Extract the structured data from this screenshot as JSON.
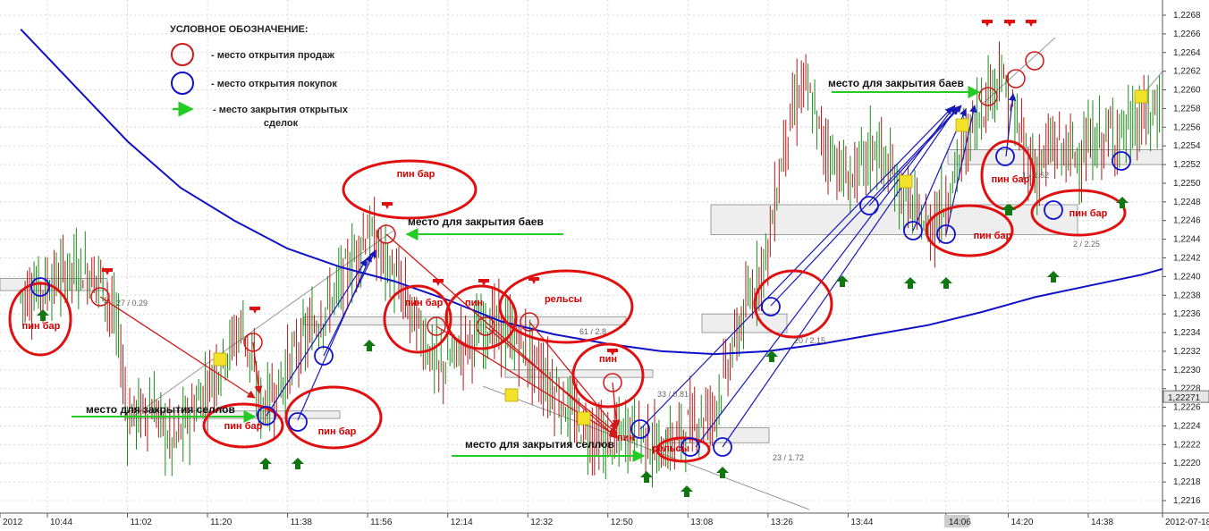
{
  "chart_data": {
    "type": "candlestick",
    "y_axis": {
      "ticks": [
        "1,2268",
        "1,2266",
        "1,2264",
        "1,2262",
        "1,2260",
        "1,2258",
        "1,2256",
        "1,2254",
        "1,2252",
        "1,2250",
        "1,2248",
        "1,2246",
        "1,2244",
        "1,2242",
        "1,2240",
        "1,2238",
        "1,2236",
        "1,2234",
        "1,2232",
        "1,2230",
        "1,2228",
        "1,2226",
        "1,2224",
        "1,2222",
        "1,2220",
        "1,2218",
        "1,2216"
      ],
      "range": [
        1.2214,
        1.227
      ],
      "current_price": "1,22271"
    },
    "x_axis": {
      "ticks": [
        "2012",
        "10:44",
        "11:02",
        "11:20",
        "11:38",
        "11:56",
        "12:14",
        "12:32",
        "12:50",
        "13:08",
        "13:26",
        "13:44",
        "14:06",
        "14:20",
        "14:38",
        "2012-07-18"
      ]
    },
    "legend": {
      "title": "УСЛОВНОЕ ОБОЗНАЧЕНИЕ:",
      "items": [
        {
          "symbol": "red-circle",
          "label": "- место открытия продаж"
        },
        {
          "symbol": "blue-circle",
          "label": "- место открытия покупок"
        },
        {
          "symbol": "green-arrow",
          "label": "- место закрытия открытых сделок"
        }
      ]
    },
    "moving_average": {
      "color": "#1010c8",
      "points": [
        [
          "10:38",
          1.22665
        ],
        [
          "10:50",
          1.22605
        ],
        [
          "11:02",
          1.22545
        ],
        [
          "11:14",
          1.22495
        ],
        [
          "11:26",
          1.2246
        ],
        [
          "11:38",
          1.2243
        ],
        [
          "11:50",
          1.2241
        ],
        [
          "12:02",
          1.22395
        ],
        [
          "12:14",
          1.22375
        ],
        [
          "12:26",
          1.22352
        ],
        [
          "12:38",
          1.22338
        ],
        [
          "12:50",
          1.22328
        ],
        [
          "13:02",
          1.2232
        ],
        [
          "13:14",
          1.22317
        ],
        [
          "13:26",
          1.2232
        ],
        [
          "13:38",
          1.22328
        ],
        [
          "13:50",
          1.22338
        ],
        [
          "14:02",
          1.22348
        ],
        [
          "14:14",
          1.22362
        ],
        [
          "14:26",
          1.22378
        ],
        [
          "14:38",
          1.2239
        ],
        [
          "14:50",
          1.22402
        ],
        [
          "14:59",
          1.22414
        ]
      ]
    },
    "annotations": {
      "pin_bar": "пин бар",
      "pin": "пин",
      "rails": "рельсы",
      "close_buys": "место для закрытия баев",
      "close_sells": "место для закрытия селлов",
      "levels": [
        "27 / 0.29",
        "61 / 2.8",
        "33 / 0.81",
        "23 / 1.72",
        "20 / 2.15",
        "1 / 1.62",
        "2 / 2.25"
      ]
    }
  }
}
